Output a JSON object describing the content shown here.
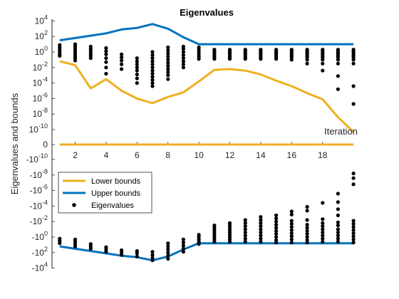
{
  "chart_data": {
    "type": "line",
    "title": "Eigenvalues",
    "xlabel": "Iteration",
    "ylabel": "Eigenvalues and bounds",
    "xlim": [
      0.5,
      20
    ],
    "xticks": [
      2,
      4,
      6,
      8,
      10,
      12,
      14,
      16,
      18
    ],
    "y_scale": "signed-log",
    "y_tick_labels": [
      "10^4",
      "10^2",
      "10^0",
      "10^-2",
      "10^-4",
      "10^-6",
      "10^-8",
      "10^-10",
      "0",
      "-10^-10",
      "-10^-8",
      "-10^-6",
      "-10^-4",
      "-10^-2",
      "-10^0",
      "-10^2",
      "-10^4"
    ],
    "colors": {
      "lower": "#EDB120",
      "upper": "#0072BD",
      "eig": "#000000"
    },
    "legend": {
      "location": "lower-left",
      "entries": [
        "Lower bounds",
        "Upper bounds",
        "Eigenvalues"
      ]
    },
    "series": [
      {
        "name": "Lower bounds",
        "kind": "pos_line",
        "x": [
          1,
          2,
          3,
          4,
          5,
          6,
          7,
          8,
          9,
          10,
          11,
          12,
          13,
          14,
          15,
          16,
          17,
          18,
          19,
          20
        ],
        "log10": [
          -1.2,
          -1.7,
          -4.7,
          -3.5,
          -5,
          -6,
          -6.6,
          -5.8,
          -5.2,
          -3.8,
          -2.3,
          -2.2,
          -2.4,
          -2.9,
          -3.7,
          -4.4,
          -5.3,
          -6.1,
          -8.4,
          -10.3
        ]
      },
      {
        "name": "Lower bounds",
        "kind": "zero_line",
        "x": [
          1,
          20
        ],
        "value": 0
      },
      {
        "name": "Upper bounds",
        "kind": "pos_line",
        "x": [
          1,
          2,
          3,
          4,
          5,
          6,
          7,
          8,
          9,
          10,
          11,
          12,
          13,
          14,
          15,
          16,
          17,
          18,
          19,
          20
        ],
        "log10": [
          1.5,
          1.8,
          2.1,
          2.4,
          2.9,
          3.1,
          3.6,
          3.0,
          1.9,
          1.0,
          1.0,
          1.0,
          1.0,
          1.0,
          1.0,
          1.0,
          1.0,
          1.0,
          1.0,
          1.0
        ]
      },
      {
        "name": "Upper bounds",
        "kind": "neg_line",
        "x": [
          1,
          2,
          3,
          4,
          5,
          6,
          7,
          8,
          9,
          10,
          11,
          12,
          13,
          14,
          15,
          16,
          17,
          18,
          19,
          20
        ],
        "log10": [
          1.2,
          1.5,
          1.8,
          2.1,
          2.4,
          2.6,
          3.0,
          2.5,
          1.6,
          0.8,
          0.8,
          0.8,
          0.8,
          0.8,
          0.8,
          0.8,
          0.8,
          0.8,
          0.8,
          0.8
        ]
      }
    ],
    "eigenvalues": {
      "name": "Eigenvalues",
      "positive": [
        {
          "x": 1,
          "log10": [
            0.9,
            0.6,
            0.3,
            0.0,
            -0.3,
            -0.5
          ]
        },
        {
          "x": 2,
          "log10": [
            1.0,
            0.7,
            0.4,
            0.1,
            -0.2,
            -0.5,
            -0.8,
            -1.1
          ]
        },
        {
          "x": 3,
          "log10": [
            0.7,
            0.4,
            0.1,
            -0.2,
            -0.5,
            -0.8
          ]
        },
        {
          "x": 4,
          "log10": [
            0.5,
            0.1,
            -0.3,
            -0.8,
            -1.3,
            -2.0,
            -2.8
          ]
        },
        {
          "x": 5,
          "log10": [
            -0.3,
            -0.7,
            -1.1,
            -1.6,
            -2.2
          ]
        },
        {
          "x": 6,
          "log10": [
            -0.8,
            -1.2,
            -1.6,
            -2.0,
            -2.4,
            -2.9,
            -3.4,
            -4.0
          ]
        },
        {
          "x": 7,
          "log10": [
            0.0,
            -0.4,
            -0.8,
            -1.2,
            -1.6,
            -2.0,
            -2.4,
            -2.8,
            -3.2,
            -3.6,
            -4.0,
            -4.4
          ]
        },
        {
          "x": 8,
          "log10": [
            0.6,
            0.2,
            -0.2,
            -0.6,
            -1.0,
            -1.4,
            -1.8,
            -2.2,
            -2.6,
            -3.0,
            -3.5
          ]
        },
        {
          "x": 9,
          "log10": [
            0.7,
            0.4,
            0.0,
            -0.4,
            -0.8,
            -1.2,
            -1.6,
            -2.0
          ]
        },
        {
          "x": 10,
          "log10": [
            0.6,
            0.3,
            0.0,
            -0.3,
            -0.6,
            -0.9
          ]
        },
        {
          "x": 11,
          "log10": [
            0.3,
            0.1,
            -0.1,
            -0.3,
            -0.5,
            -0.7,
            -0.9
          ]
        },
        {
          "x": 12,
          "log10": [
            0.3,
            0.1,
            -0.1,
            -0.3,
            -0.5,
            -0.7,
            -0.9
          ]
        },
        {
          "x": 13,
          "log10": [
            0.3,
            0.1,
            -0.1,
            -0.3,
            -0.5,
            -0.7,
            -0.9
          ]
        },
        {
          "x": 14,
          "log10": [
            0.3,
            0.1,
            -0.1,
            -0.3,
            -0.5,
            -0.7,
            -0.9
          ]
        },
        {
          "x": 15,
          "log10": [
            0.3,
            0.1,
            -0.1,
            -0.3,
            -0.5,
            -0.7,
            -0.9
          ]
        },
        {
          "x": 16,
          "log10": [
            0.3,
            0.1,
            -0.1,
            -0.3,
            -0.5,
            -0.7,
            -1.0
          ]
        },
        {
          "x": 17,
          "log10": [
            0.3,
            0.1,
            -0.1,
            -0.3,
            -0.5,
            -0.7,
            -1.0,
            -1.5
          ]
        },
        {
          "x": 18,
          "log10": [
            0.3,
            0.1,
            -0.1,
            -0.3,
            -0.5,
            -0.7,
            -1.0,
            -1.5,
            -2.4
          ]
        },
        {
          "x": 19,
          "log10": [
            0.3,
            0.1,
            -0.1,
            -0.3,
            -0.5,
            -0.7,
            -1.0,
            -1.5,
            -3.1,
            -4.8
          ]
        },
        {
          "x": 20,
          "log10": [
            0.3,
            0.1,
            -0.1,
            -0.3,
            -0.5,
            -0.7,
            -1.0,
            -1.5,
            -4.4,
            -6.7
          ]
        }
      ],
      "negative": [
        {
          "x": 1,
          "log10": [
            0.2,
            0.5,
            0.8
          ]
        },
        {
          "x": 2,
          "log10": [
            0.3,
            0.6,
            0.9,
            1.2
          ]
        },
        {
          "x": 3,
          "log10": [
            0.9,
            1.2,
            1.5
          ]
        },
        {
          "x": 4,
          "log10": [
            1.3,
            1.6,
            1.9
          ]
        },
        {
          "x": 5,
          "log10": [
            1.7,
            2.0,
            2.3
          ]
        },
        {
          "x": 6,
          "log10": [
            1.8,
            2.1,
            2.5
          ]
        },
        {
          "x": 7,
          "log10": [
            1.9,
            2.3,
            2.7,
            3.0
          ]
        },
        {
          "x": 8,
          "log10": [
            0.8,
            1.2,
            1.6,
            2.0,
            2.4,
            2.8
          ]
        },
        {
          "x": 9,
          "log10": [
            0.3,
            0.7,
            1.1,
            1.5,
            1.9
          ]
        },
        {
          "x": 10,
          "log10": [
            -0.3,
            0.0,
            0.3,
            0.6,
            0.9
          ]
        },
        {
          "x": 11,
          "log10": [
            -1.5,
            -1.2,
            -0.9,
            -0.6,
            -0.3,
            0.0,
            0.3,
            0.6
          ]
        },
        {
          "x": 12,
          "log10": [
            -1.8,
            -1.5,
            -1.2,
            -0.9,
            -0.6,
            -0.3,
            0.0,
            0.3,
            0.6
          ]
        },
        {
          "x": 13,
          "log10": [
            -2.2,
            -1.8,
            -1.4,
            -1.0,
            -0.6,
            -0.2,
            0.2,
            0.6
          ]
        },
        {
          "x": 14,
          "log10": [
            -2.6,
            -2.2,
            -1.8,
            -1.4,
            -1.0,
            -0.6,
            -0.2,
            0.2,
            0.6
          ]
        },
        {
          "x": 15,
          "log10": [
            -2.8,
            -2.4,
            -2.0,
            -1.6,
            -1.2,
            -0.8,
            -0.4,
            0.0,
            0.4,
            0.7
          ]
        },
        {
          "x": 16,
          "log10": [
            -3.3,
            -2.9,
            -2.1,
            -1.7,
            -1.3,
            -0.9,
            -0.5,
            -0.1,
            0.3,
            0.7
          ]
        },
        {
          "x": 17,
          "log10": [
            -3.9,
            -3.4,
            -2.2,
            -1.6,
            -1.2,
            -0.8,
            -0.4,
            0.0,
            0.4,
            0.7
          ]
        },
        {
          "x": 18,
          "log10": [
            -4.4,
            -2.3,
            -1.8,
            -1.4,
            -1.0,
            -0.6,
            -0.2,
            0.2,
            0.6
          ]
        },
        {
          "x": 19,
          "log10": [
            -5.6,
            -4.5,
            -3.6,
            -2.8,
            -1.9,
            -1.5,
            -1.0,
            -0.6,
            -0.2,
            0.2,
            0.6
          ]
        },
        {
          "x": 20,
          "log10": [
            -8.2,
            -7.6,
            -6.8,
            -2.1,
            -1.7,
            -1.3,
            -0.9,
            -0.5,
            -0.1,
            0.3,
            0.7
          ]
        }
      ]
    }
  }
}
